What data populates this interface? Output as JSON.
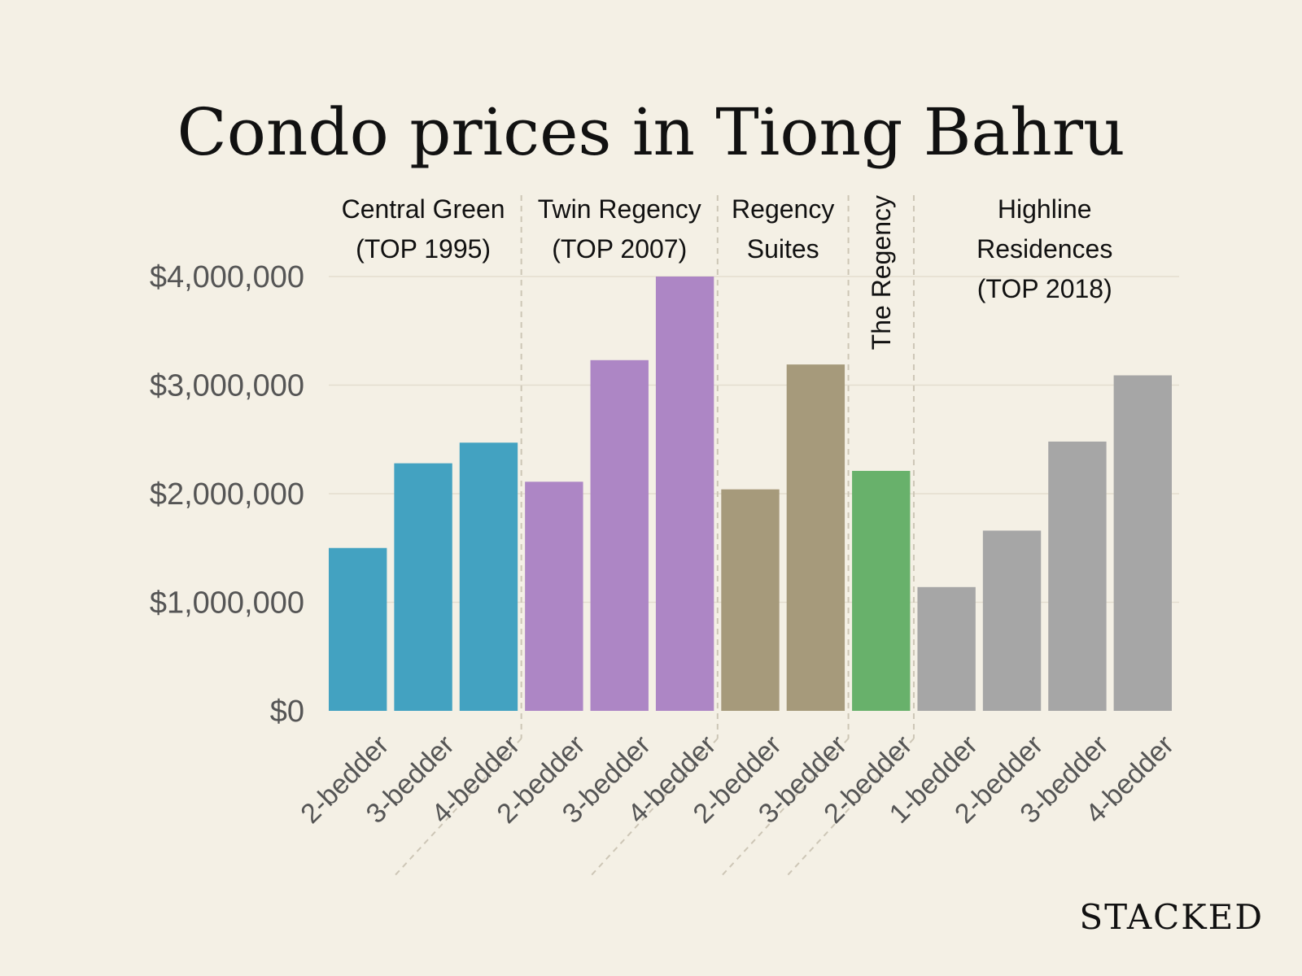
{
  "brand": "STACKED",
  "chart_data": {
    "type": "bar",
    "title": "Condo prices in Tiong Bahru",
    "ylim": [
      0,
      4000000
    ],
    "yticks": [
      0,
      1000000,
      2000000,
      3000000,
      4000000
    ],
    "ytick_labels": [
      "$0",
      "$1,000,000",
      "$2,000,000",
      "$3,000,000",
      "$4,000,000"
    ],
    "grid": true,
    "categories": [
      "2-bedder",
      "3-bedder",
      "4-bedder",
      "2-bedder",
      "3-bedder",
      "4-bedder",
      "2-bedder",
      "3-bedder",
      "2-bedder",
      "1-bedder",
      "2-bedder",
      "3-bedder",
      "4-bedder"
    ],
    "groups": [
      {
        "label_lines": [
          "Central Green",
          "(TOP 1995)"
        ],
        "color": "#43a2c1",
        "values": [
          1500000,
          2280000,
          2470000
        ]
      },
      {
        "label_lines": [
          "Twin Regency",
          "(TOP 2007)"
        ],
        "color": "#ad86c5",
        "values": [
          2110000,
          3230000,
          4000000
        ]
      },
      {
        "label_lines": [
          "Regency",
          "Suites"
        ],
        "color": "#a69a7b",
        "values": [
          2040000,
          3190000
        ]
      },
      {
        "label_lines": [
          "The Regency"
        ],
        "label_orientation": "vertical",
        "color": "#68b16b",
        "values": [
          2210000
        ]
      },
      {
        "label_lines": [
          "Highline",
          "Residences",
          "(TOP 2018)"
        ],
        "color": "#a6a6a6",
        "values": [
          1140000,
          1660000,
          2480000,
          3090000
        ]
      }
    ]
  }
}
